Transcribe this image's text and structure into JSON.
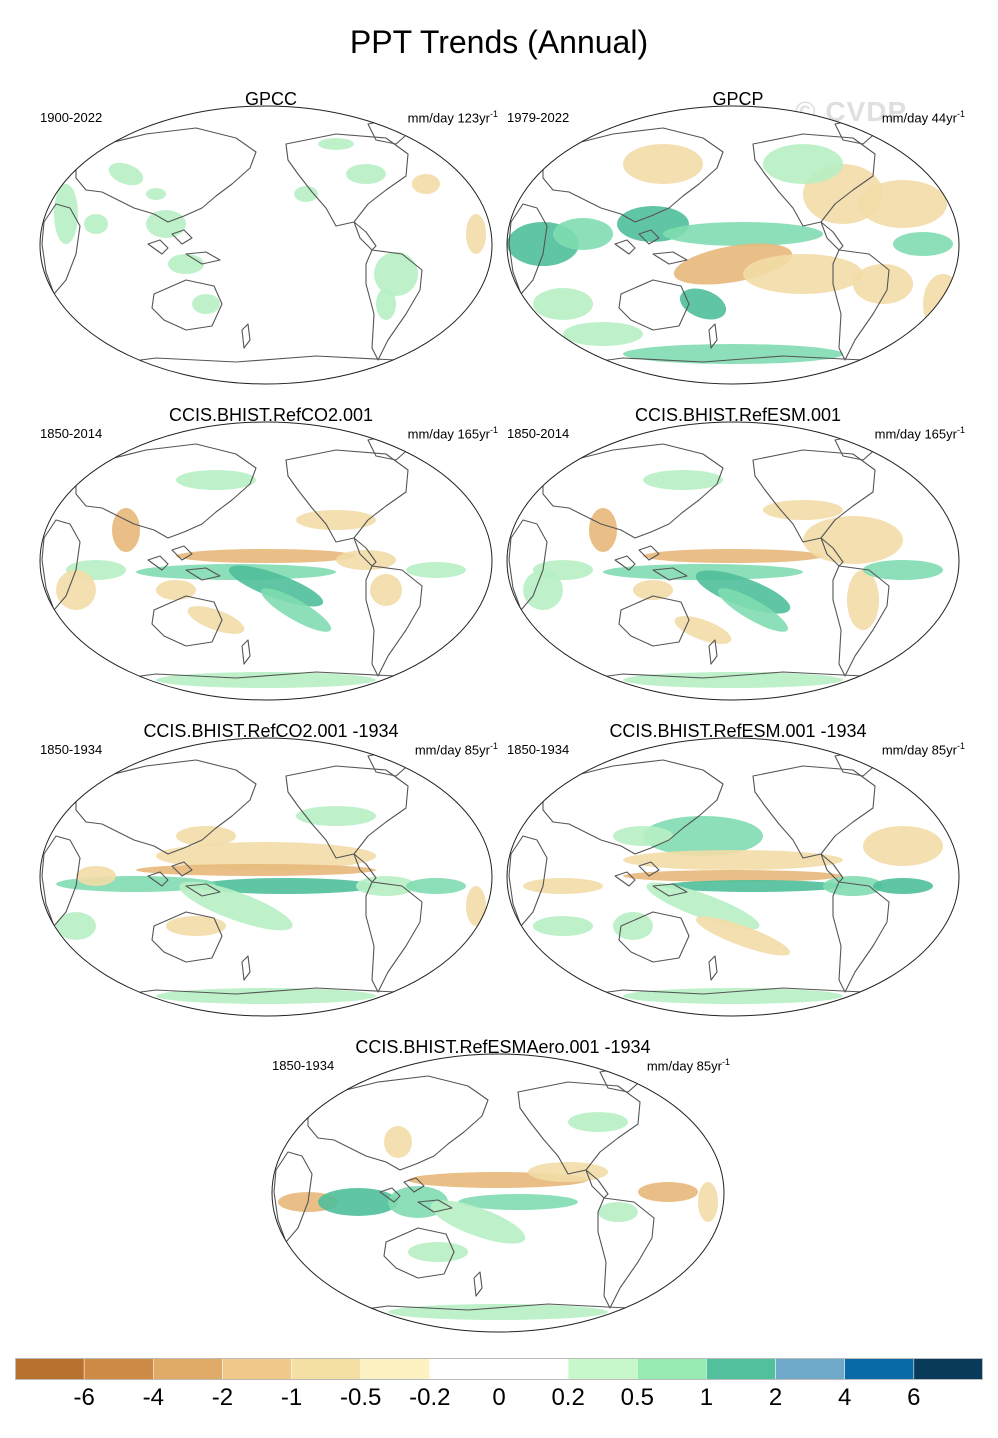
{
  "title": "PPT Trends (Annual)",
  "watermark": "© CVDP",
  "panels": [
    {
      "title": "GPCC",
      "period": "1900-2022",
      "units": "mm/day 123yr",
      "units_sup": "-1",
      "pattern": "obs_gpcc"
    },
    {
      "title": "GPCP",
      "period": "1979-2022",
      "units": "mm/day 44yr",
      "units_sup": "-1",
      "pattern": "obs_gpcp"
    },
    {
      "title": "CCIS.BHIST.RefCO2.001",
      "period": "1850-2014",
      "units": "mm/day 165yr",
      "units_sup": "-1",
      "pattern": "model_a"
    },
    {
      "title": "CCIS.BHIST.RefESM.001",
      "period": "1850-2014",
      "units": "mm/day 165yr",
      "units_sup": "-1",
      "pattern": "model_b"
    },
    {
      "title": "CCIS.BHIST.RefCO2.001 -1934",
      "period": "1850-1934",
      "units": "mm/day 85yr",
      "units_sup": "-1",
      "pattern": "model_c"
    },
    {
      "title": "CCIS.BHIST.RefESM.001 -1934",
      "period": "1850-1934",
      "units": "mm/day 85yr",
      "units_sup": "-1",
      "pattern": "model_d"
    },
    {
      "title": "CCIS.BHIST.RefESMAero.001 -1934",
      "period": "1850-1934",
      "units": "mm/day 85yr",
      "units_sup": "-1",
      "pattern": "model_e"
    }
  ],
  "colorbar": {
    "colors": [
      "#b8702e",
      "#cc8a45",
      "#e0aa68",
      "#f0c98a",
      "#f3e0a2",
      "#fdf3c2",
      "#ffffff",
      "#ffffff",
      "#c9f7cc",
      "#97ebb2",
      "#52bf9d",
      "#6fa8c8",
      "#0a6aa8",
      "#0a3a5a"
    ],
    "labels": [
      "-6",
      "-4",
      "-2",
      "-1",
      "-0.5",
      "-0.2",
      "0",
      "0.2",
      "0.5",
      "1",
      "2",
      "4",
      "6"
    ]
  },
  "map_colors": {
    "dry_strong": "#e8b87a",
    "dry": "#f2dba6",
    "wet": "#b7f0c4",
    "wet_mid": "#7fdcb0",
    "wet_strong": "#4fbf9a",
    "coast": "#555555"
  }
}
